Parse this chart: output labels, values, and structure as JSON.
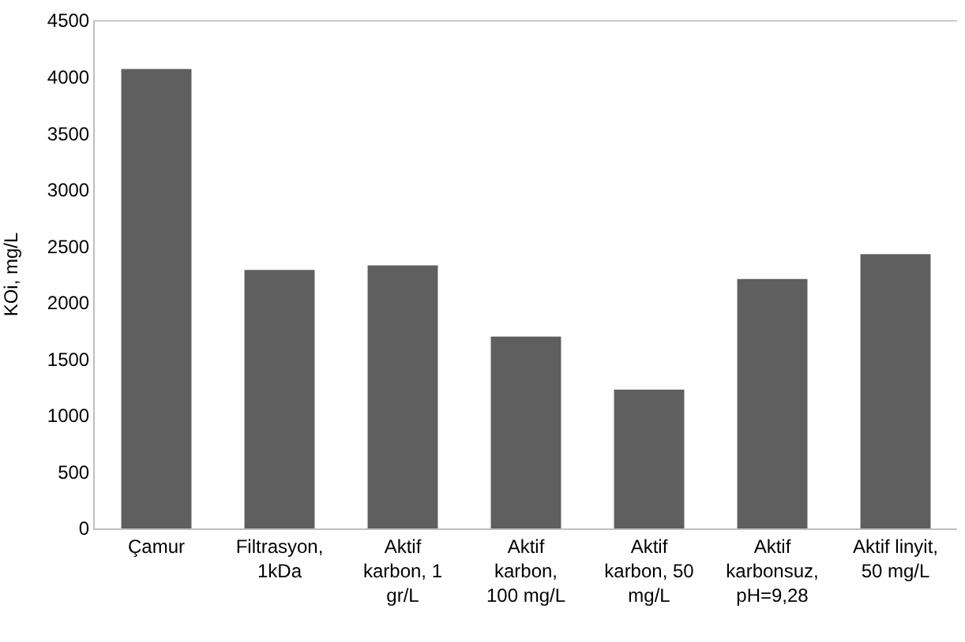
{
  "chart_data": {
    "type": "bar",
    "ylabel": "KOi, mg/L",
    "categories": [
      "Çamur",
      "Filtrasyon,\n1kDa",
      "Aktif\nkarbon, 1\ngr/L",
      "Aktif\nkarbon,\n100 mg/L",
      "Aktif\nkarbon, 50\nmg/L",
      "Aktif\nkarbonsuz,\npH=9,28",
      "Aktif linyit,\n50 mg/L"
    ],
    "values": [
      4070,
      2290,
      2330,
      1700,
      1230,
      2210,
      2430
    ],
    "color": "#5f5f5f",
    "ylim": [
      0,
      4500
    ],
    "yticks": [
      0,
      500,
      1000,
      1500,
      2000,
      2500,
      3000,
      3500,
      4000,
      4500
    ]
  }
}
